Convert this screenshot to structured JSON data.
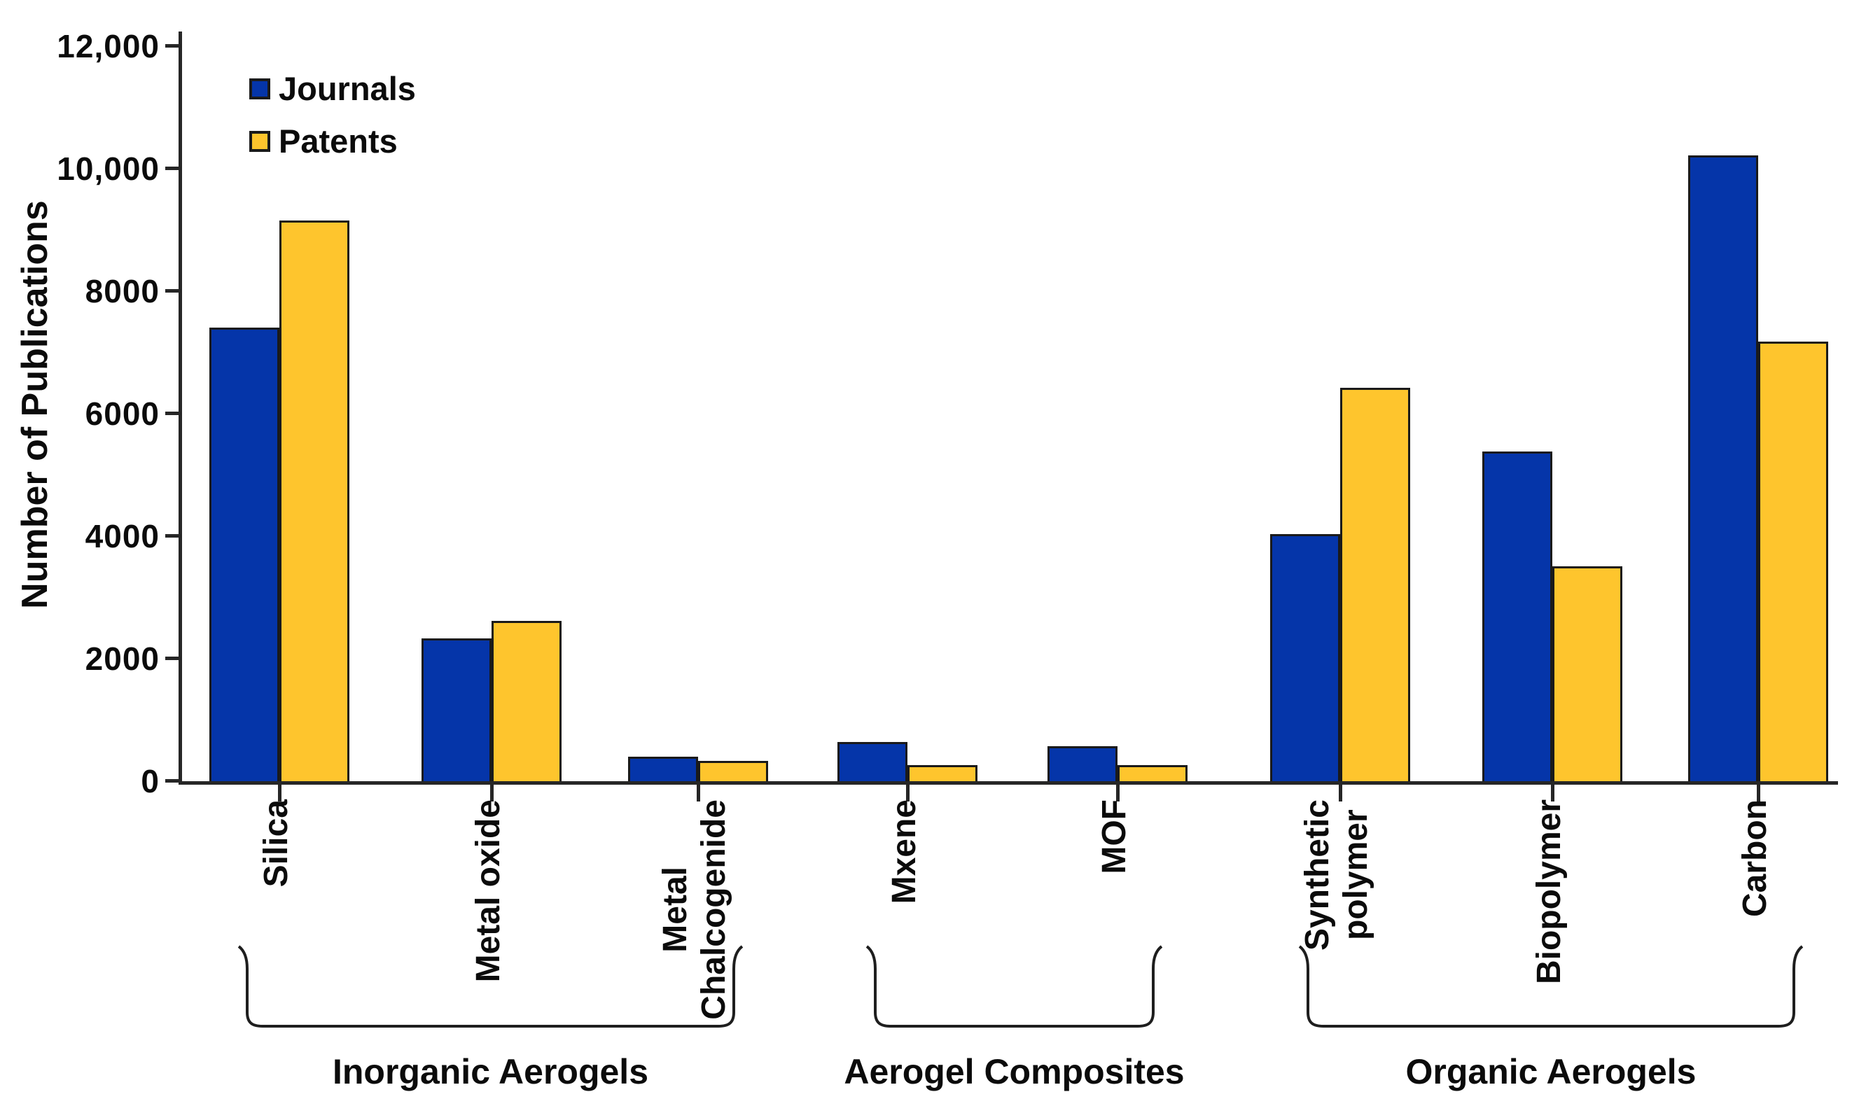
{
  "chart_data": {
    "type": "bar",
    "title": "",
    "ylabel": "Number of Publications",
    "xlabel": "",
    "ylim": [
      0,
      12000
    ],
    "grid": false,
    "legend_position": "top-left",
    "bar_edge_color": "#1a1a1a",
    "axis_color": "#262626",
    "ytick_values": [
      0,
      2000,
      4000,
      6000,
      8000,
      10000,
      12000
    ],
    "ytick_labels": [
      "0",
      "2000",
      "4000",
      "6000",
      "8000",
      "10,000",
      "12,000"
    ],
    "categories": [
      "Silica",
      "Metal oxide",
      "Metal Chalcogenide",
      "Mxene",
      "MOF",
      "Synthetic polymer",
      "Biopolymer",
      "Carbon"
    ],
    "category_label_lines": [
      [
        "Silica"
      ],
      [
        "Metal oxide"
      ],
      [
        "Metal",
        "Chalcogenide"
      ],
      [
        "Mxene"
      ],
      [
        "MOF"
      ],
      [
        "Synthetic",
        "polymer"
      ],
      [
        "Biopolymer"
      ],
      [
        "Carbon"
      ]
    ],
    "series": [
      {
        "name": "Journals",
        "color": "#0535A9",
        "values": [
          7400,
          2330,
          400,
          640,
          570,
          4030,
          5380,
          10220
        ]
      },
      {
        "name": "Patents",
        "color": "#FEC52D",
        "values": [
          9150,
          2620,
          330,
          260,
          260,
          6420,
          3510,
          7180
        ]
      }
    ],
    "groups": [
      {
        "label": "Inorganic Aerogels",
        "start": 0,
        "end": 2
      },
      {
        "label": "Aerogel Composites",
        "start": 3,
        "end": 4
      },
      {
        "label": "Organic Aerogels",
        "start": 5,
        "end": 7
      }
    ]
  }
}
